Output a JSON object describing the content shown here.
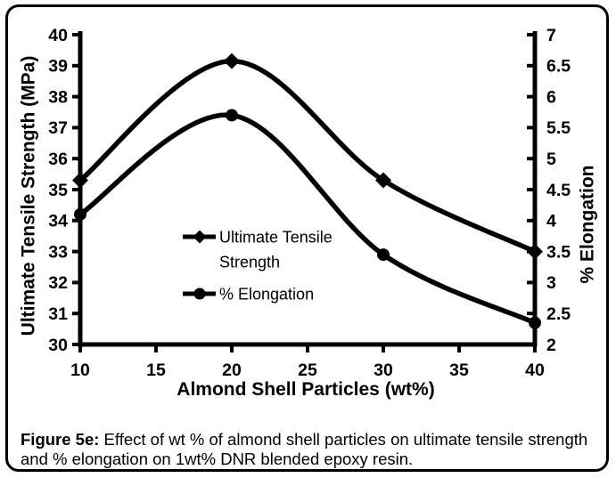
{
  "figure": {
    "caption": {
      "label": "Figure 5e:",
      "text": " Effect of wt % of almond shell particles on ultimate tensile strength and % elongation on 1wt% DNR blended epoxy resin."
    }
  },
  "chart_data": {
    "type": "line",
    "title": "",
    "xlabel": "Almond Shell Particles (wt%)",
    "ylabel_left": "Ultimate Tensile Strength (MPa)",
    "ylabel_right": "% Elongation",
    "x": [
      10,
      20,
      30,
      40
    ],
    "series": [
      {
        "name": "Ultimate Tensile Strength",
        "legend_lines": [
          "Ultimate Tensile",
          "Strength"
        ],
        "axis": "left",
        "marker": "diamond",
        "values": [
          35.3,
          39.15,
          35.3,
          33.0
        ]
      },
      {
        "name": "% Elongation",
        "legend_lines": [
          "% Elongation"
        ],
        "axis": "right",
        "marker": "circle",
        "values": [
          4.1,
          5.7,
          3.45,
          2.35
        ]
      }
    ],
    "x_ticks": [
      "10",
      "15",
      "20",
      "25",
      "30",
      "35",
      "40"
    ],
    "y_left_ticks": [
      "30",
      "31",
      "32",
      "33",
      "34",
      "35",
      "36",
      "37",
      "38",
      "39",
      "40"
    ],
    "y_right_ticks": [
      "2",
      "2.5",
      "3",
      "3.5",
      "4",
      "4.5",
      "5",
      "5.5",
      "6",
      "6.5",
      "7"
    ],
    "xlim": [
      10,
      40
    ],
    "ylim_left": [
      30,
      40
    ],
    "ylim_right": [
      2,
      7
    ],
    "grid": false,
    "legend_position": "inside-center-left",
    "line_color": "#000000",
    "background_color": "#ffffff"
  }
}
